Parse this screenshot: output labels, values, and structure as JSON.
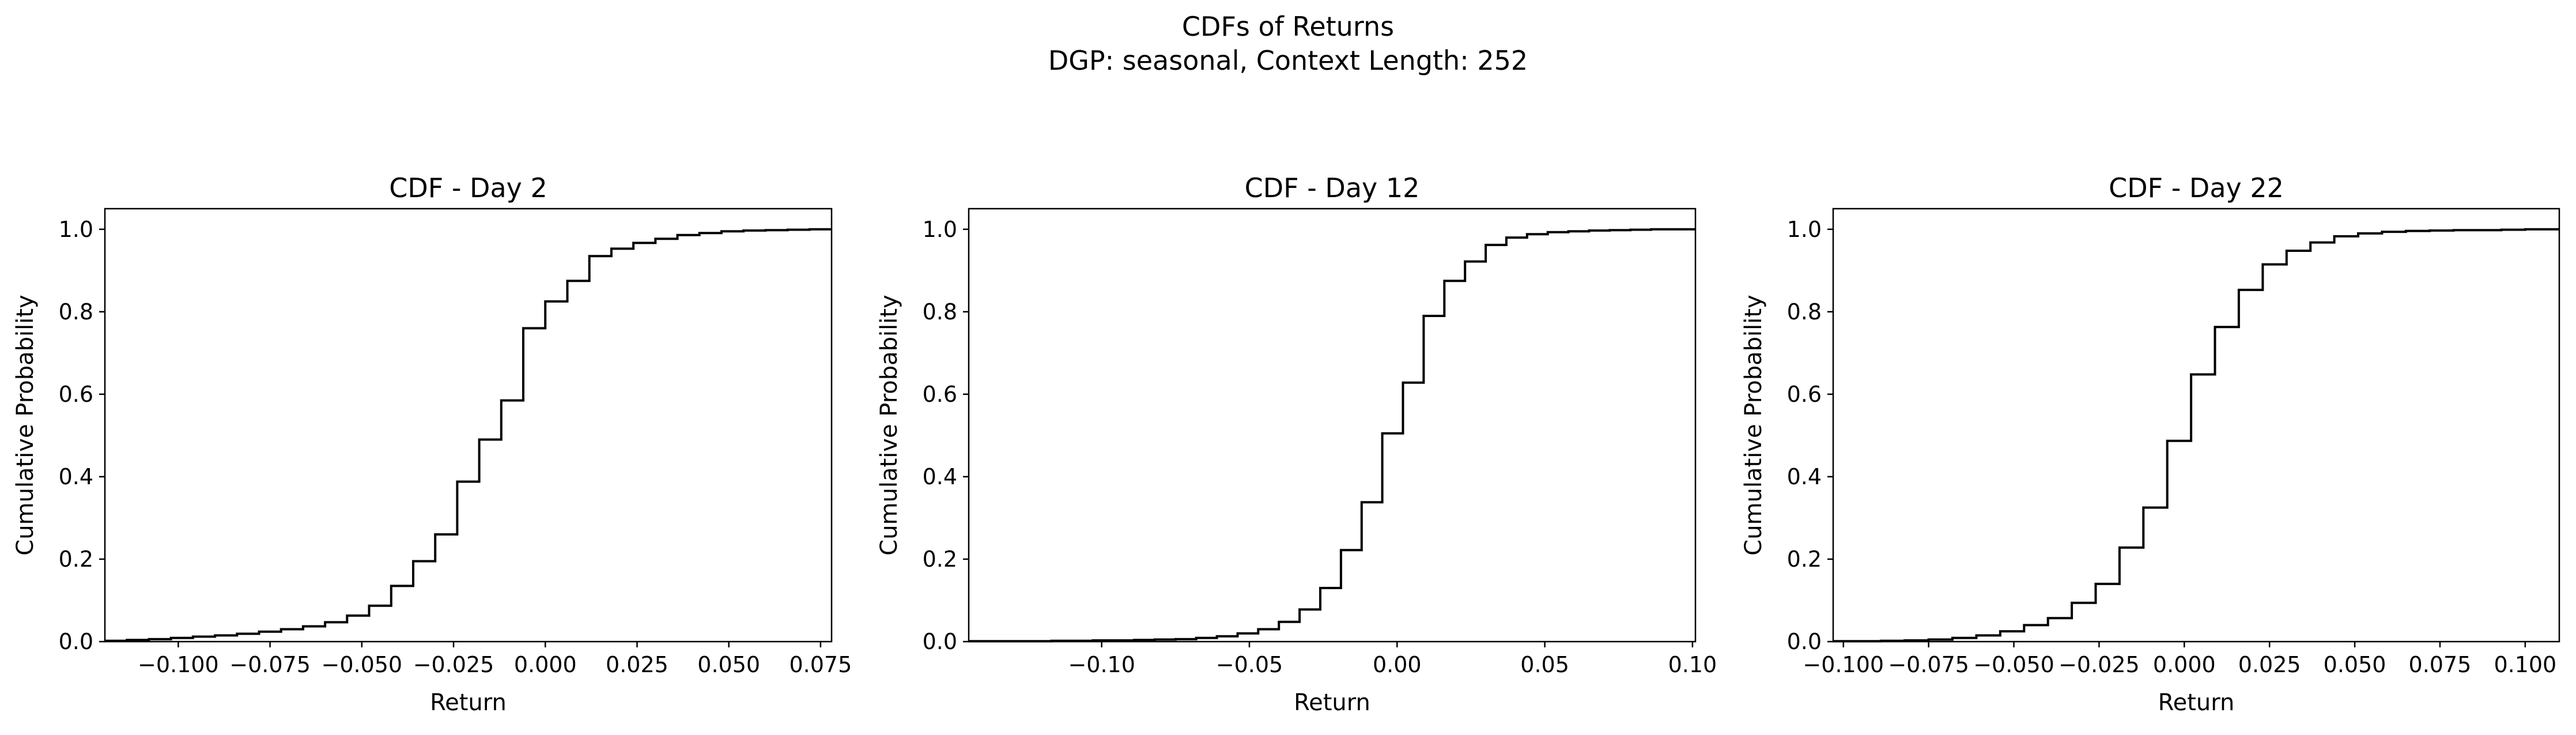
{
  "figure": {
    "suptitle_line1": "CDFs of Returns",
    "suptitle_line2": "DGP: seasonal, Context Length: 252"
  },
  "chart_data": [
    {
      "type": "line",
      "style": "step",
      "title": "CDF - Day 2",
      "xlabel": "Return",
      "ylabel": "Cumulative Probability",
      "xlim": [
        -0.12,
        0.078
      ],
      "ylim": [
        0,
        1.05
      ],
      "xticks": [
        -0.1,
        -0.075,
        -0.05,
        -0.025,
        0.0,
        0.025,
        0.05,
        0.075
      ],
      "xtick_labels": [
        "−0.100",
        "−0.075",
        "−0.050",
        "−0.025",
        "0.000",
        "0.025",
        "0.050",
        "0.075"
      ],
      "yticks": [
        0.0,
        0.2,
        0.4,
        0.6,
        0.8,
        1.0
      ],
      "ytick_labels": [
        "0.0",
        "0.2",
        "0.4",
        "0.6",
        "0.8",
        "1.0"
      ],
      "grid": false,
      "line_color": "#000000",
      "x": [
        -0.12,
        -0.114,
        -0.108,
        -0.102,
        -0.096,
        -0.09,
        -0.084,
        -0.078,
        -0.072,
        -0.066,
        -0.06,
        -0.054,
        -0.048,
        -0.042,
        -0.036,
        -0.03,
        -0.024,
        -0.018,
        -0.012,
        -0.006,
        0.0,
        0.006,
        0.012,
        0.018,
        0.024,
        0.03,
        0.036,
        0.042,
        0.048,
        0.054,
        0.06,
        0.066,
        0.072,
        0.078
      ],
      "y": [
        0.002,
        0.004,
        0.006,
        0.009,
        0.012,
        0.015,
        0.019,
        0.024,
        0.03,
        0.037,
        0.047,
        0.063,
        0.087,
        0.135,
        0.195,
        0.26,
        0.388,
        0.49,
        0.585,
        0.76,
        0.825,
        0.875,
        0.935,
        0.953,
        0.967,
        0.977,
        0.986,
        0.991,
        0.995,
        0.997,
        0.998,
        0.999,
        1.0,
        1.0
      ]
    },
    {
      "type": "line",
      "style": "step",
      "title": "CDF - Day 12",
      "xlabel": "Return",
      "ylabel": "Cumulative Probability",
      "xlim": [
        -0.145,
        0.101
      ],
      "ylim": [
        0,
        1.05
      ],
      "xticks": [
        -0.1,
        -0.05,
        0.0,
        0.05,
        0.1
      ],
      "xtick_labels": [
        "−0.10",
        "−0.05",
        "0.00",
        "0.05",
        "0.10"
      ],
      "yticks": [
        0.0,
        0.2,
        0.4,
        0.6,
        0.8,
        1.0
      ],
      "ytick_labels": [
        "0.0",
        "0.2",
        "0.4",
        "0.6",
        "0.8",
        "1.0"
      ],
      "grid": false,
      "line_color": "#000000",
      "x": [
        -0.145,
        -0.138,
        -0.131,
        -0.124,
        -0.117,
        -0.11,
        -0.103,
        -0.096,
        -0.089,
        -0.082,
        -0.075,
        -0.068,
        -0.061,
        -0.054,
        -0.047,
        -0.04,
        -0.033,
        -0.026,
        -0.019,
        -0.012,
        -0.005,
        0.002,
        0.009,
        0.016,
        0.023,
        0.03,
        0.037,
        0.044,
        0.051,
        0.058,
        0.065,
        0.072,
        0.079,
        0.086,
        0.093,
        0.101
      ],
      "y": [
        0.001,
        0.001,
        0.001,
        0.001,
        0.002,
        0.002,
        0.003,
        0.003,
        0.004,
        0.005,
        0.006,
        0.009,
        0.013,
        0.02,
        0.03,
        0.048,
        0.078,
        0.13,
        0.222,
        0.338,
        0.505,
        0.628,
        0.79,
        0.875,
        0.922,
        0.962,
        0.98,
        0.988,
        0.993,
        0.995,
        0.997,
        0.998,
        0.999,
        1.0,
        1.0,
        1.0
      ]
    },
    {
      "type": "line",
      "style": "step",
      "title": "CDF - Day 22",
      "xlabel": "Return",
      "ylabel": "Cumulative Probability",
      "xlim": [
        -0.103,
        0.11
      ],
      "ylim": [
        0,
        1.05
      ],
      "xticks": [
        -0.1,
        -0.075,
        -0.05,
        -0.025,
        0.0,
        0.025,
        0.05,
        0.075,
        0.1
      ],
      "xtick_labels": [
        "−0.100",
        "−0.075",
        "−0.050",
        "−0.025",
        "0.000",
        "0.025",
        "0.050",
        "0.075",
        "0.100"
      ],
      "yticks": [
        0.0,
        0.2,
        0.4,
        0.6,
        0.8,
        1.0
      ],
      "ytick_labels": [
        "0.0",
        "0.2",
        "0.4",
        "0.6",
        "0.8",
        "1.0"
      ],
      "grid": false,
      "line_color": "#000000",
      "x": [
        -0.103,
        -0.096,
        -0.089,
        -0.082,
        -0.075,
        -0.068,
        -0.061,
        -0.054,
        -0.047,
        -0.04,
        -0.033,
        -0.026,
        -0.019,
        -0.012,
        -0.005,
        0.002,
        0.009,
        0.016,
        0.023,
        0.03,
        0.037,
        0.044,
        0.051,
        0.058,
        0.065,
        0.072,
        0.079,
        0.086,
        0.093,
        0.1,
        0.11
      ],
      "y": [
        0.001,
        0.001,
        0.002,
        0.003,
        0.005,
        0.009,
        0.015,
        0.025,
        0.04,
        0.057,
        0.094,
        0.14,
        0.228,
        0.325,
        0.487,
        0.648,
        0.763,
        0.853,
        0.915,
        0.948,
        0.968,
        0.983,
        0.99,
        0.994,
        0.996,
        0.997,
        0.998,
        0.998,
        0.999,
        1.0,
        1.0
      ]
    }
  ]
}
